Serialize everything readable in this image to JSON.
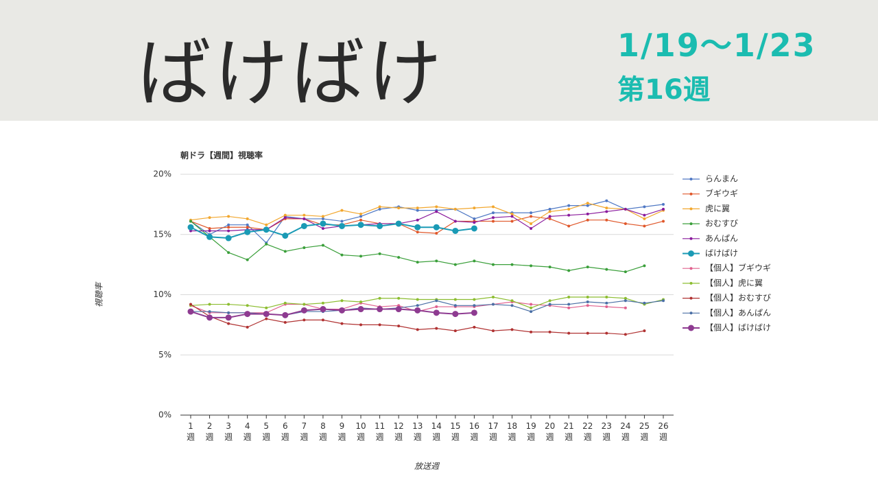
{
  "header": {
    "title": "ばけばけ",
    "date_range": "1/19～1/23",
    "week": "第16週"
  },
  "chart_data": {
    "type": "line",
    "title": "朝ドラ【週間】視聴率",
    "x_label": "放送週",
    "y_label": "視聴率",
    "categories": [
      "1\n週",
      "2\n週",
      "3\n週",
      "4\n週",
      "5\n週",
      "6\n週",
      "7\n週",
      "8\n週",
      "9\n週",
      "10\n週",
      "11\n週",
      "12\n週",
      "13\n週",
      "14\n週",
      "15\n週",
      "16\n週",
      "17\n週",
      "18\n週",
      "19\n週",
      "20\n週",
      "21\n週",
      "22\n週",
      "23\n週",
      "24\n週",
      "25\n週",
      "26\n週"
    ],
    "ylim": [
      0,
      20
    ],
    "yticks": [
      {
        "value": 0,
        "label": "0%"
      },
      {
        "value": 5,
        "label": "5%"
      },
      {
        "value": 10,
        "label": "10%"
      },
      {
        "value": 15,
        "label": "15%"
      },
      {
        "value": 20,
        "label": "20%"
      }
    ],
    "grid": true,
    "legend": "right",
    "series": [
      {
        "name": "らんまん",
        "color": "#4f78c4",
        "values": [
          16.1,
          15.0,
          15.8,
          15.8,
          14.3,
          16.5,
          16.3,
          16.3,
          16.1,
          16.5,
          17.1,
          17.3,
          17.0,
          17.0,
          17.1,
          16.3,
          16.8,
          16.8,
          16.8,
          17.1,
          17.4,
          17.4,
          17.8,
          17.1,
          17.3,
          17.5
        ]
      },
      {
        "name": "ブギウギ",
        "color": "#e0582b",
        "values": [
          16.1,
          15.5,
          15.6,
          15.6,
          15.4,
          16.3,
          16.3,
          15.8,
          15.8,
          16.2,
          15.9,
          15.9,
          15.2,
          15.1,
          16.1,
          16.1,
          16.1,
          16.1,
          16.5,
          16.3,
          15.7,
          16.2,
          16.2,
          15.9,
          15.7,
          16.1
        ]
      },
      {
        "name": "虎に翼",
        "color": "#f2a72e",
        "values": [
          16.2,
          16.4,
          16.5,
          16.3,
          15.8,
          16.6,
          16.6,
          16.5,
          17.0,
          16.7,
          17.3,
          17.2,
          17.2,
          17.3,
          17.1,
          17.2,
          17.3,
          16.7,
          15.9,
          16.9,
          17.1,
          17.6,
          17.2,
          17.1,
          16.3,
          17.0
        ]
      },
      {
        "name": "おむすび",
        "color": "#3a9f3a",
        "values": [
          16.1,
          14.8,
          13.5,
          12.9,
          14.2,
          13.6,
          13.9,
          14.1,
          13.3,
          13.2,
          13.4,
          13.1,
          12.7,
          12.8,
          12.5,
          12.8,
          12.5,
          12.5,
          12.4,
          12.3,
          12.0,
          12.3,
          12.1,
          11.9,
          12.4,
          null
        ]
      },
      {
        "name": "あんぱん",
        "color": "#8a1a9c",
        "values": [
          15.3,
          15.3,
          15.3,
          15.4,
          15.4,
          16.4,
          16.3,
          15.5,
          15.7,
          15.8,
          15.9,
          15.9,
          16.2,
          16.9,
          16.1,
          16.0,
          16.4,
          16.5,
          15.5,
          16.5,
          16.6,
          16.7,
          16.9,
          17.1,
          16.6,
          17.1
        ]
      },
      {
        "name": "ばけばけ",
        "color": "#1a9ab5",
        "values": [
          15.6,
          14.8,
          14.7,
          15.2,
          15.4,
          14.9,
          15.7,
          15.9,
          15.7,
          15.8,
          15.7,
          15.9,
          15.6,
          15.6,
          15.3,
          15.5,
          null,
          null,
          null,
          null,
          null,
          null,
          null,
          null,
          null,
          null
        ]
      },
      {
        "name": "【個人】ブギウギ",
        "color": "#e0608e",
        "values": [
          9.1,
          8.5,
          8.5,
          8.5,
          8.5,
          9.2,
          9.2,
          8.8,
          8.8,
          9.3,
          9.0,
          9.1,
          8.6,
          9.0,
          9.0,
          9.0,
          9.2,
          9.4,
          9.2,
          9.1,
          8.9,
          9.1,
          9.0,
          8.9,
          null,
          null
        ]
      },
      {
        "name": "【個人】虎に翼",
        "color": "#8cbd30",
        "values": [
          9.1,
          9.2,
          9.2,
          9.1,
          8.9,
          9.3,
          9.2,
          9.3,
          9.5,
          9.4,
          9.7,
          9.7,
          9.6,
          9.6,
          9.6,
          9.6,
          9.8,
          9.5,
          8.9,
          9.5,
          9.8,
          9.8,
          9.8,
          9.7,
          9.2,
          9.6
        ]
      },
      {
        "name": "【個人】おむすび",
        "color": "#b03232",
        "values": [
          9.2,
          8.2,
          7.6,
          7.3,
          8.0,
          7.7,
          7.9,
          7.9,
          7.6,
          7.5,
          7.5,
          7.4,
          7.1,
          7.2,
          7.0,
          7.3,
          7.0,
          7.1,
          6.9,
          6.9,
          6.8,
          6.8,
          6.8,
          6.7,
          7.0,
          null
        ]
      },
      {
        "name": "【個人】あんぱん",
        "color": "#4a6fa5",
        "values": [
          8.6,
          8.6,
          8.5,
          8.5,
          8.4,
          8.3,
          8.6,
          8.6,
          8.7,
          8.9,
          8.8,
          8.9,
          9.1,
          9.5,
          9.1,
          9.1,
          9.2,
          9.1,
          8.6,
          9.2,
          9.2,
          9.4,
          9.3,
          9.5,
          9.3,
          9.5
        ]
      },
      {
        "name": "【個人】ばけばけ",
        "color": "#8e3b91",
        "values": [
          8.6,
          8.1,
          8.1,
          8.4,
          8.4,
          8.3,
          8.7,
          8.8,
          8.7,
          8.8,
          8.8,
          8.8,
          8.7,
          8.5,
          8.4,
          8.5,
          null,
          null,
          null,
          null,
          null,
          null,
          null,
          null,
          null,
          null
        ]
      }
    ]
  }
}
